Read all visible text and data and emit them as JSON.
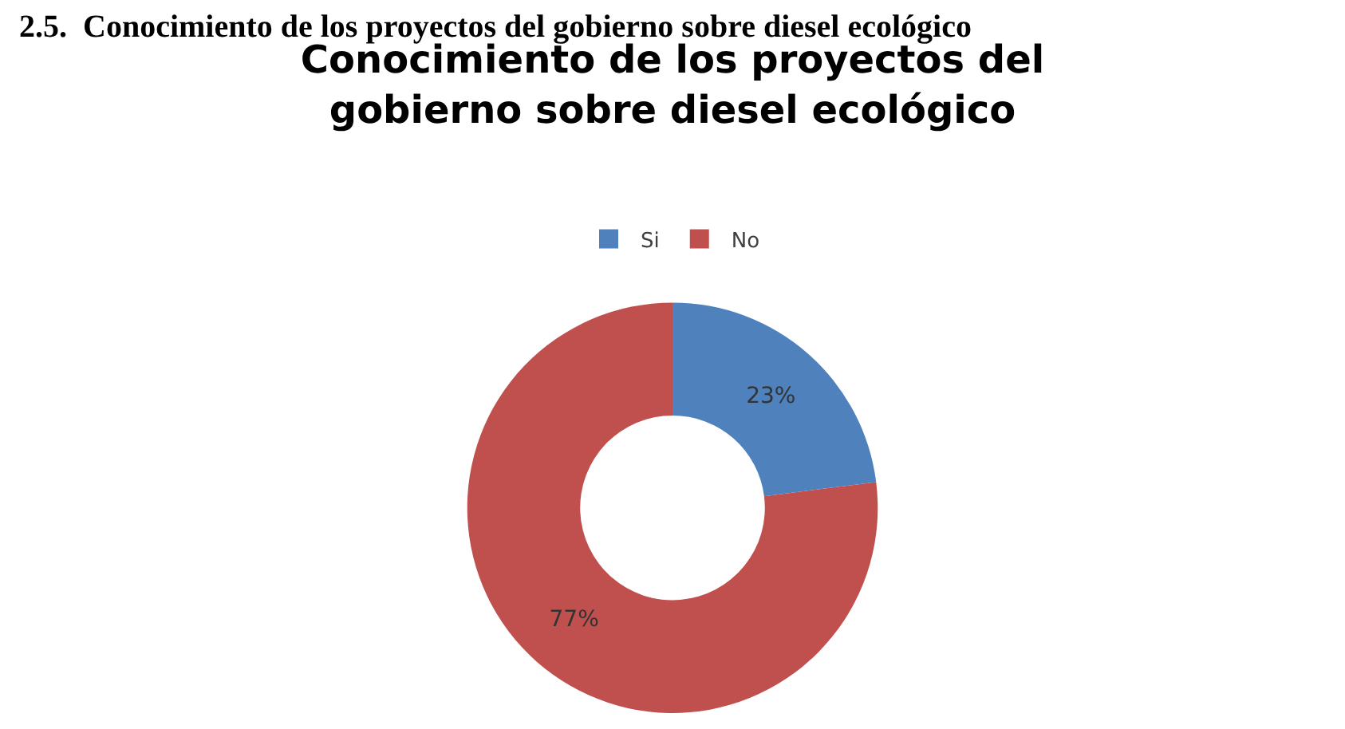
{
  "chart_data": {
    "type": "donut",
    "title": "Conocimiento de los proyectos del gobierno sobre diesel ecológico",
    "annotations": [
      "2.5.  Conocimiento de los proyectos del gobierno sobre diesel ecológico"
    ],
    "categories": [
      "Si",
      "No"
    ],
    "values": [
      23,
      77
    ],
    "colors": [
      "#4f81bd",
      "#c0504d"
    ],
    "value_labels": [
      "23%",
      "77%"
    ],
    "legend": "top"
  }
}
